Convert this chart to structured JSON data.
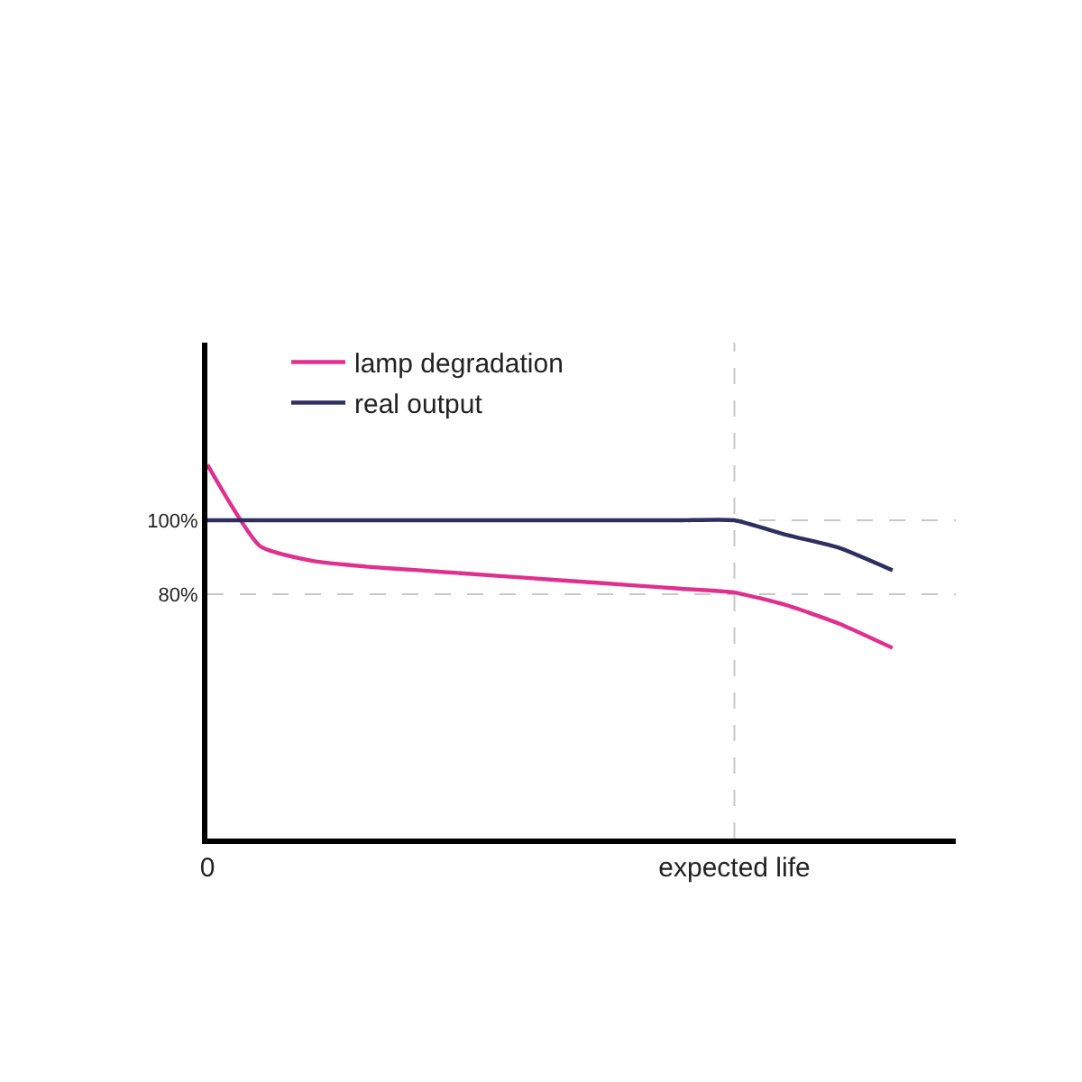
{
  "chart_data": {
    "type": "line",
    "ylim": [
      14,
      148
    ],
    "categories": [
      "0",
      null,
      null,
      null,
      null,
      null,
      null,
      null,
      null,
      null,
      "expected life",
      null,
      null,
      null
    ],
    "yticks": [
      {
        "value": 80,
        "label": "80%"
      },
      {
        "value": 100,
        "label": "100%"
      }
    ],
    "series": [
      {
        "name": "lamp degradation",
        "color": "#e0308f",
        "values": [
          115,
          93,
          89,
          87.5,
          86.5,
          85.5,
          84.5,
          83.5,
          82.5,
          81.5,
          80.5,
          77,
          72,
          65.5
        ]
      },
      {
        "name": "real output",
        "color": "#2e2f5e",
        "values": [
          100,
          100,
          100,
          100,
          100,
          100,
          100,
          100,
          100,
          100,
          100,
          96,
          92.5,
          86.5
        ]
      }
    ],
    "ref_lines": [
      {
        "axis": "y",
        "value": 100,
        "color": "#c8c8c8",
        "line_style": "dashed"
      },
      {
        "axis": "y",
        "value": 80,
        "color": "#c8c8c8",
        "line_style": "dashed"
      },
      {
        "axis": "x",
        "value": "expected life",
        "color": "#c8c8c8",
        "line_style": "dashed"
      }
    ],
    "grid": false,
    "legend": "top left",
    "marker": "none",
    "line_style": "solid"
  }
}
